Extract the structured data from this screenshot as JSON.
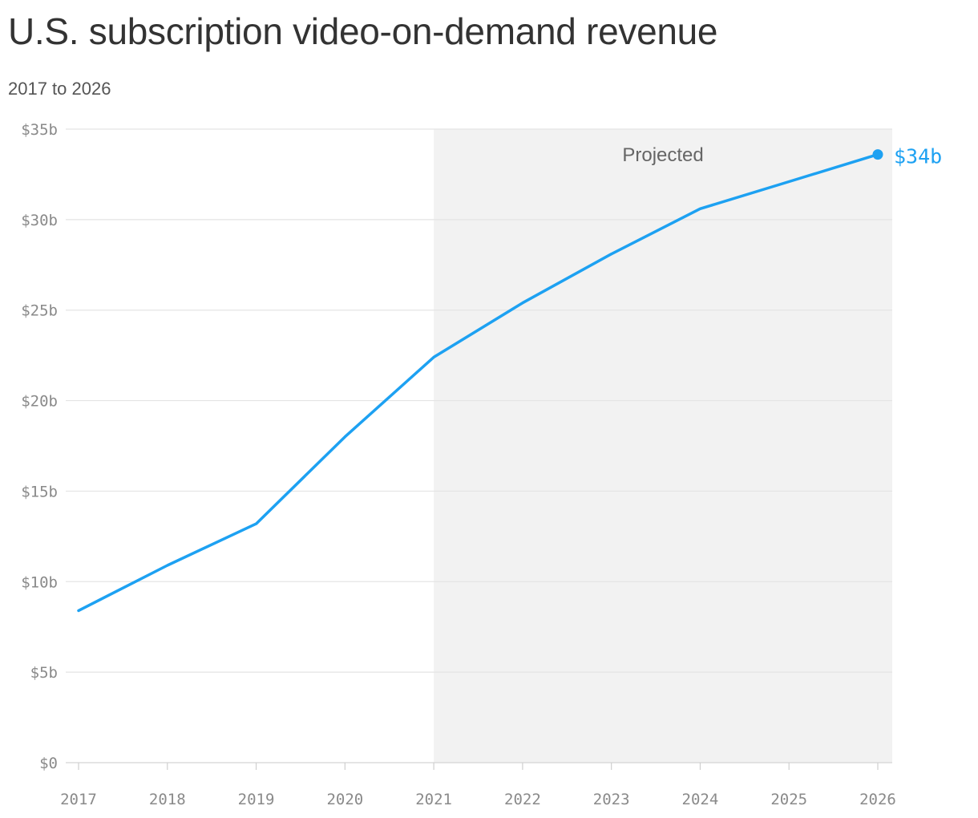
{
  "chart_data": {
    "type": "line",
    "title": "U.S. subscription video-on-demand revenue",
    "subtitle": "2017 to 2026",
    "x": [
      2017,
      2018,
      2019,
      2020,
      2021,
      2022,
      2023,
      2024,
      2025,
      2026
    ],
    "x_tick_labels": [
      "2017",
      "2018",
      "2019",
      "2020",
      "2021",
      "2022",
      "2023",
      "2024",
      "2025",
      "2026"
    ],
    "series": [
      {
        "values": [
          8.4,
          10.9,
          13.2,
          18.0,
          22.4,
          25.4,
          28.1,
          30.6,
          32.1,
          33.6
        ],
        "color": "#1da1f2"
      }
    ],
    "ylim": [
      0,
      35
    ],
    "y_ticks": [
      0,
      5,
      10,
      15,
      20,
      25,
      30,
      35
    ],
    "y_tick_labels": [
      "$0",
      "$5b",
      "$10b",
      "$15b",
      "$20b",
      "$25b",
      "$30b",
      "$35b"
    ],
    "projected_region": {
      "label": "Projected",
      "from": 2021,
      "to": 2026,
      "color": "#f2f2f2"
    },
    "end_label": "$34b",
    "grid": true,
    "legend": "none"
  }
}
